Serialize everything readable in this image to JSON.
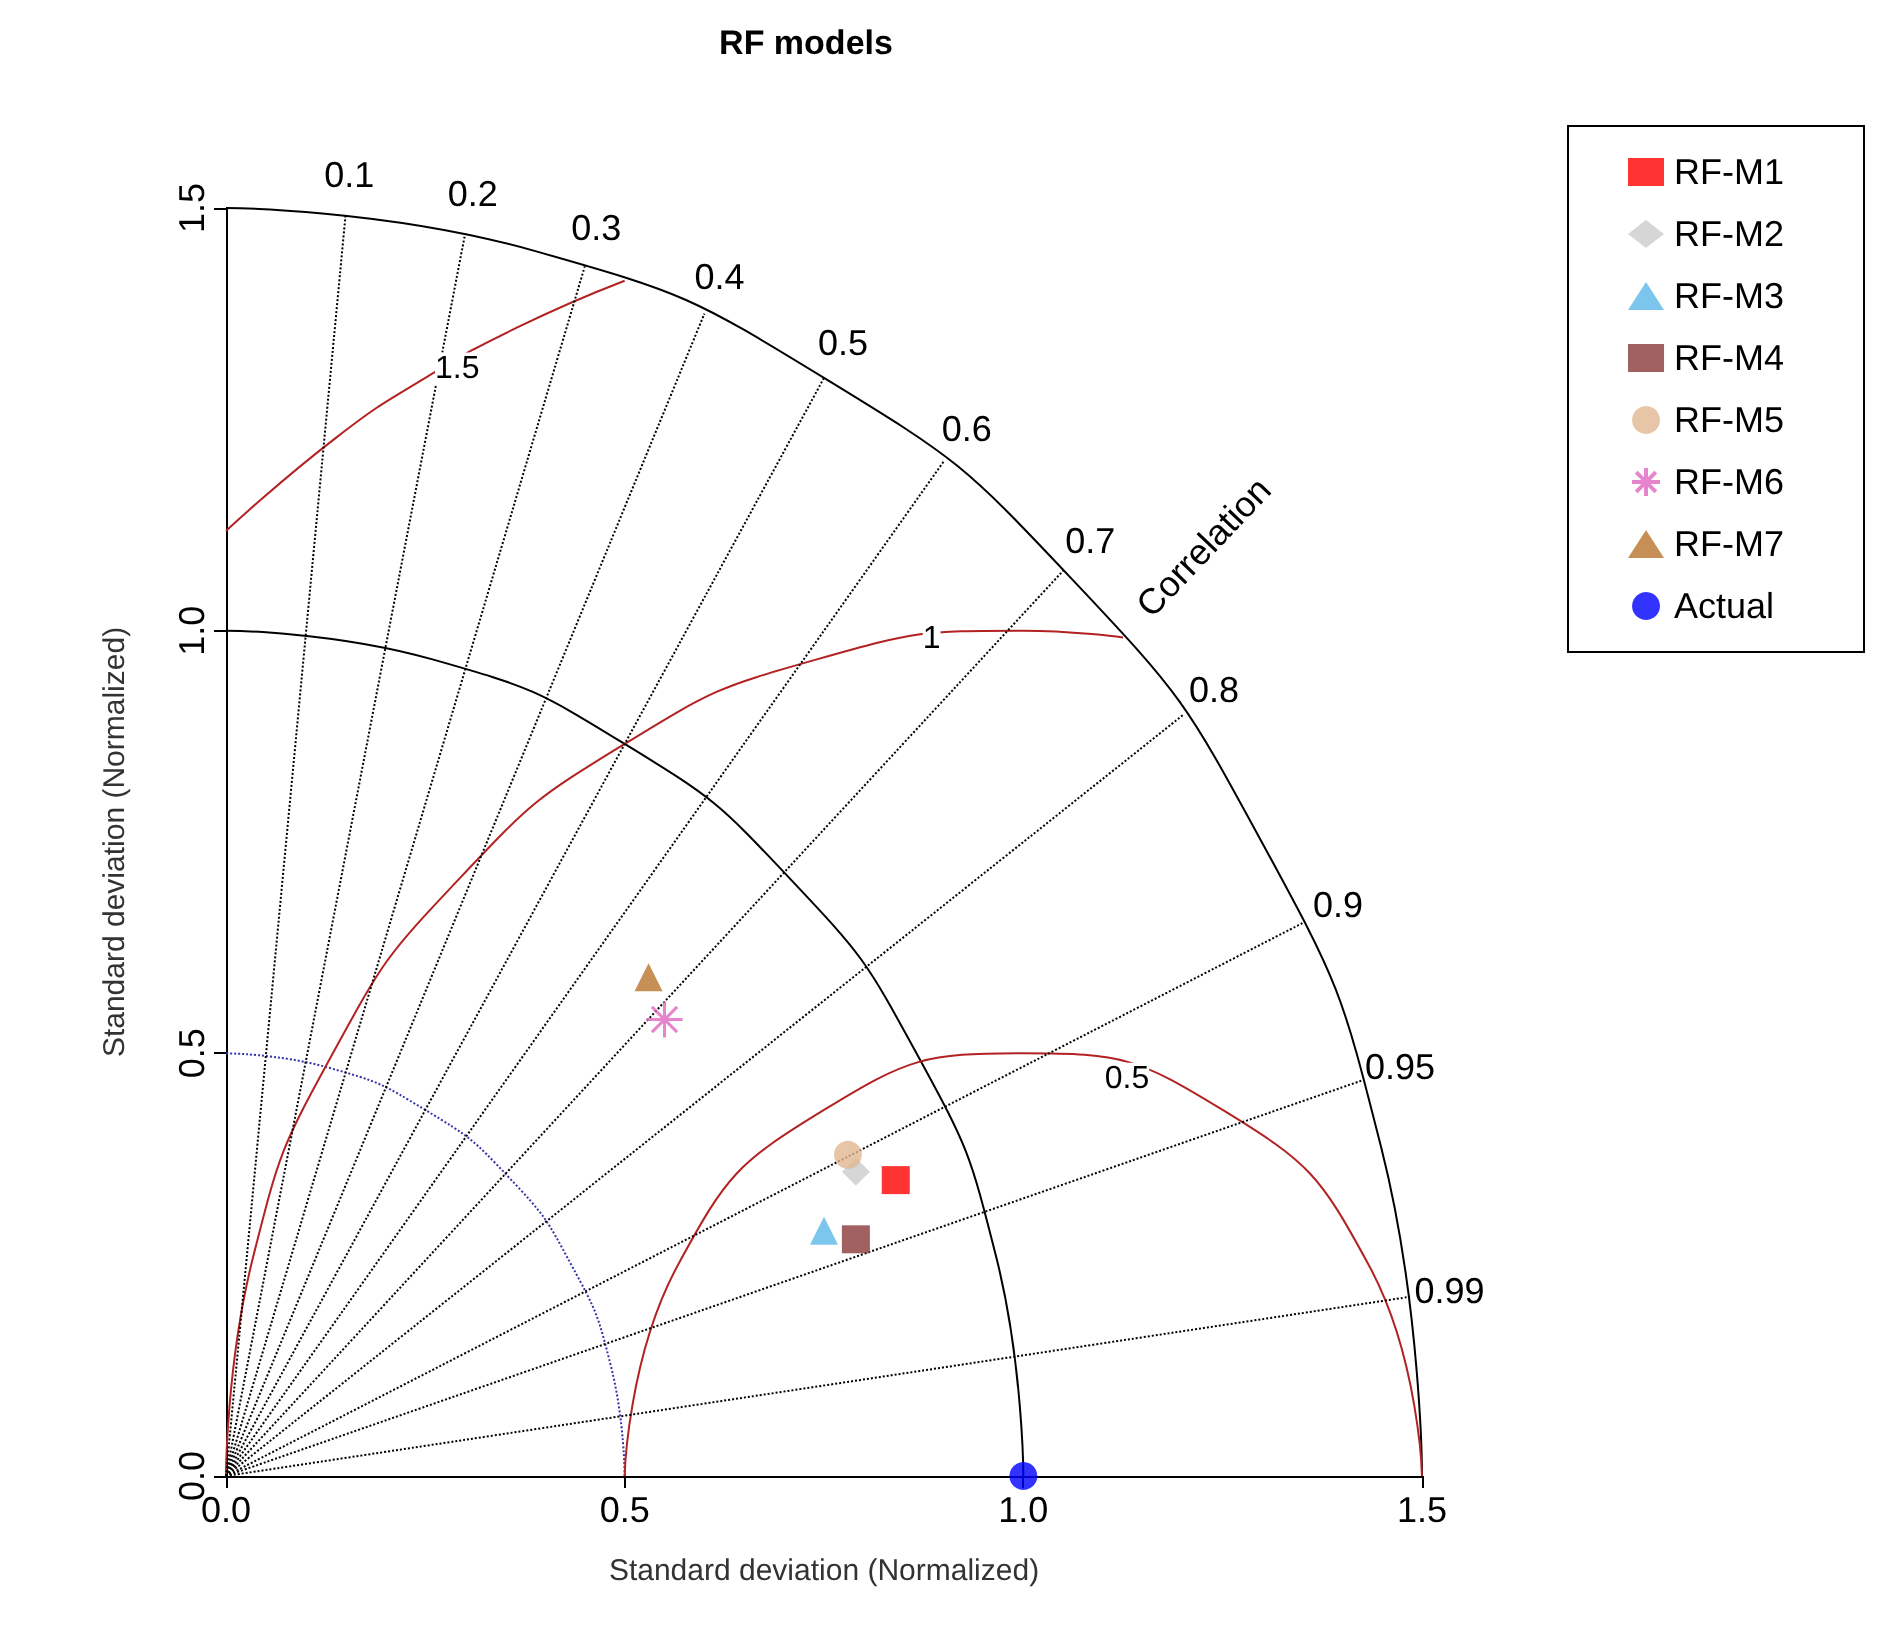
{
  "chart_data": {
    "type": "scatter",
    "title": "RF models",
    "xlabel": "Standard deviation (Normalized)",
    "ylabel": "Standard deviation (Normalized)",
    "xlim": [
      0,
      1.5
    ],
    "ylim": [
      0,
      1.5
    ],
    "xticks": [
      {
        "value": 0,
        "label": "0.0"
      },
      0.5,
      {
        "value": 1,
        "label": "1.0"
      },
      1.5
    ],
    "yticks": [
      {
        "value": 0,
        "label": "0.0"
      },
      0.5,
      {
        "value": 1,
        "label": "1.0"
      },
      1.5
    ],
    "grid": false,
    "legend": "top right",
    "series": [
      {
        "type": "line",
        "color": "#3333aa",
        "line_style": "dotted",
        "marker": "none",
        "x": [
          0.5,
          0.483,
          0.433,
          0.354,
          0.25,
          0.129,
          0
        ],
        "values": [
          0,
          0.129,
          0.25,
          0.354,
          0.433,
          0.483,
          0.5
        ]
      },
      {
        "type": "line",
        "color": "#000000",
        "line_style": "solid",
        "marker": "none",
        "x": [
          1,
          0.966,
          0.866,
          0.707,
          0.5,
          0.259,
          0
        ],
        "values": [
          0,
          0.259,
          0.5,
          0.707,
          0.866,
          0.966,
          1
        ]
      },
      {
        "type": "line",
        "color": "#000000",
        "line_style": "solid",
        "marker": "none",
        "x": [
          1.5,
          1.449,
          1.299,
          1.061,
          0.75,
          0.388,
          0
        ],
        "values": [
          0,
          0.388,
          0.75,
          1.061,
          1.299,
          1.449,
          1.5
        ]
      },
      {
        "type": "line",
        "color": "#b22222",
        "line_style": "solid",
        "marker": "none",
        "x": [
          1.5,
          1.433,
          1.25,
          1,
          0.75,
          0.567,
          0.5
        ],
        "values": [
          0,
          0.25,
          0.433,
          0.5,
          0.433,
          0.25,
          0
        ]
      },
      {
        "type": "line",
        "color": "#b22222",
        "line_style": "solid",
        "marker": "none",
        "x": [
          1.125,
          1,
          0.741,
          0.5,
          0.293,
          0.134,
          0.034,
          0
        ],
        "values": [
          0.992,
          1,
          0.966,
          0.866,
          0.707,
          0.5,
          0.259,
          0
        ]
      },
      {
        "type": "line",
        "color": "#b22222",
        "line_style": "solid",
        "marker": "none",
        "x": [
          0.5,
          0.366,
          0.25,
          0.139,
          0
        ],
        "values": [
          1.414,
          1.359,
          1.299,
          1.229,
          1.118
        ]
      },
      {
        "type": "line",
        "color": "#000000",
        "line_style": "dotted",
        "marker": "none",
        "x": [
          0,
          0.15
        ],
        "values": [
          0,
          1.492
        ]
      },
      {
        "type": "line",
        "color": "#000000",
        "line_style": "dotted",
        "marker": "none",
        "x": [
          0,
          0.3
        ],
        "values": [
          0,
          1.47
        ]
      },
      {
        "type": "line",
        "color": "#000000",
        "line_style": "dotted",
        "marker": "none",
        "x": [
          0,
          0.45
        ],
        "values": [
          0,
          1.431
        ]
      },
      {
        "type": "line",
        "color": "#000000",
        "line_style": "dotted",
        "marker": "none",
        "x": [
          0,
          0.6
        ],
        "values": [
          0,
          1.375
        ]
      },
      {
        "type": "line",
        "color": "#000000",
        "line_style": "dotted",
        "marker": "none",
        "x": [
          0,
          0.75
        ],
        "values": [
          0,
          1.299
        ]
      },
      {
        "type": "line",
        "color": "#000000",
        "line_style": "dotted",
        "marker": "none",
        "x": [
          0,
          0.9
        ],
        "values": [
          0,
          1.2
        ]
      },
      {
        "type": "line",
        "color": "#000000",
        "line_style": "dotted",
        "marker": "none",
        "x": [
          0,
          1.05
        ],
        "values": [
          0,
          1.071
        ]
      },
      {
        "type": "line",
        "color": "#000000",
        "line_style": "dotted",
        "marker": "none",
        "x": [
          0,
          1.2
        ],
        "values": [
          0,
          0.9
        ]
      },
      {
        "type": "line",
        "color": "#000000",
        "line_style": "dotted",
        "marker": "none",
        "x": [
          0,
          1.35
        ],
        "values": [
          0,
          0.654
        ]
      },
      {
        "type": "line",
        "color": "#000000",
        "line_style": "dotted",
        "marker": "none",
        "x": [
          0,
          1.425
        ],
        "values": [
          0,
          0.468
        ]
      },
      {
        "type": "line",
        "color": "#000000",
        "line_style": "dotted",
        "marker": "none",
        "x": [
          0,
          1.485
        ],
        "values": [
          0,
          0.212
        ]
      },
      {
        "name": "RF-M1",
        "color": "#ff0000",
        "marker": "square",
        "x": [
          0.84
        ],
        "values": [
          0.35
        ]
      },
      {
        "name": "RF-M2",
        "color": "#cccccc",
        "marker": "diamond",
        "x": [
          0.79
        ],
        "values": [
          0.36
        ]
      },
      {
        "name": "RF-M3",
        "color": "#5bb8e8",
        "marker": "triangle",
        "x": [
          0.75
        ],
        "values": [
          0.29
        ]
      },
      {
        "name": "RF-M4",
        "color": "#8b3a3a",
        "marker": "square",
        "x": [
          0.79
        ],
        "values": [
          0.28
        ]
      },
      {
        "name": "RF-M5",
        "color": "#e0b890",
        "marker": "circle",
        "x": [
          0.78
        ],
        "values": [
          0.38
        ]
      },
      {
        "name": "RF-M6",
        "color": "#e066c0",
        "marker": "cross",
        "x": [
          0.55
        ],
        "values": [
          0.54
        ]
      },
      {
        "name": "RF-M7",
        "color": "#b8732a",
        "marker": "triangle",
        "x": [
          0.53
        ],
        "values": [
          0.59
        ]
      },
      {
        "name": "Actual",
        "color": "#0000ff",
        "marker": "circle",
        "x": [
          1.0
        ],
        "values": [
          0.0
        ]
      }
    ],
    "annotations": [
      {
        "text": "0.1",
        "x": 0.15,
        "y": 1.492
      },
      {
        "text": "0.2",
        "x": 0.3,
        "y": 1.47
      },
      {
        "text": "0.3",
        "x": 0.45,
        "y": 1.431
      },
      {
        "text": "0.4",
        "x": 0.6,
        "y": 1.375
      },
      {
        "text": "0.5",
        "x": 0.75,
        "y": 1.299
      },
      {
        "text": "0.6",
        "x": 0.9,
        "y": 1.2
      },
      {
        "text": "0.7",
        "x": 1.05,
        "y": 1.071
      },
      {
        "text": "0.8",
        "x": 1.2,
        "y": 0.9
      },
      {
        "text": "0.9",
        "x": 1.35,
        "y": 0.654
      },
      {
        "text": "0.95",
        "x": 1.425,
        "y": 0.468
      },
      {
        "text": "0.99",
        "x": 1.485,
        "y": 0.212
      },
      "Correlation",
      {
        "text": "1.5",
        "x": 0.29,
        "y": 1.31
      },
      {
        "text": "1",
        "x": 0.885,
        "y": 0.99
      },
      {
        "text": "0.5",
        "x": 1.13,
        "y": 0.47
      }
    ]
  }
}
